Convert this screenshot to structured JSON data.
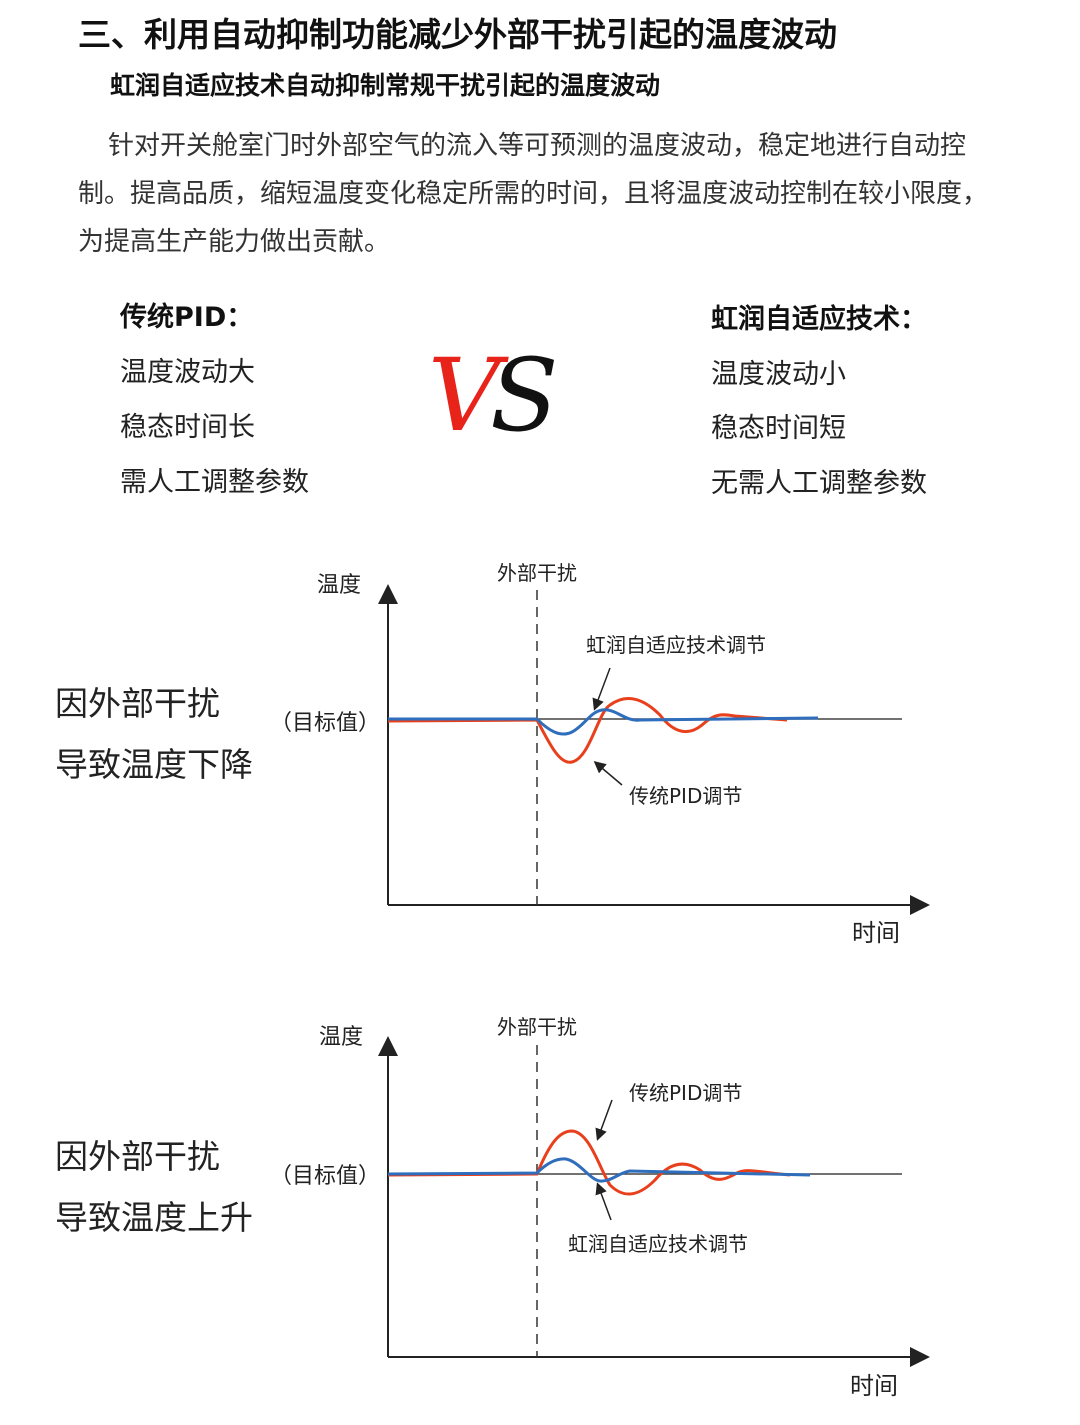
{
  "heading": "三、利用自动抑制功能减少外部干扰引起的温度波动",
  "subheading": "虹润自适应技术自动抑制常规干扰引起的温度波动",
  "paragraph": "针对开关舱室门时外部空气的流入等可预测的温度波动，稳定地进行自动控制。提高品质，缩短温度变化稳定所需的时间，且将温度波动控制在较小限度，为提高生产能力做出贡献。",
  "comparison": {
    "left": {
      "title": "传统PID：",
      "items": [
        "温度波动大",
        "稳态时间长",
        "需人工调整参数"
      ]
    },
    "vs": {
      "v": "V",
      "s": "S",
      "v_color": "#e8231a",
      "s_color": "#111111"
    },
    "right": {
      "title": "虹润自适应技术：",
      "items": [
        "温度波动小",
        "稳态时间短",
        "无需人工调整参数"
      ]
    }
  },
  "diagrams": [
    {
      "caption_line1": "因外部干扰",
      "caption_line2": "导致温度下降",
      "y_label": "温度",
      "x_label": "时间",
      "setpoint_label": "（目标值）",
      "disturbance_label": "外部干扰",
      "adaptive_label": "虹润自适应技术调节",
      "pid_label": "传统PID调节"
    },
    {
      "caption_line1": "因外部干扰",
      "caption_line2": "导致温度上升",
      "y_label": "温度",
      "x_label": "时间",
      "setpoint_label": "（目标值）",
      "disturbance_label": "外部干扰",
      "adaptive_label": "虹润自适应技术调节",
      "pid_label": "传统PID调节"
    }
  ],
  "colors": {
    "pid": "#e8401c",
    "adaptive": "#2f6dbd"
  }
}
